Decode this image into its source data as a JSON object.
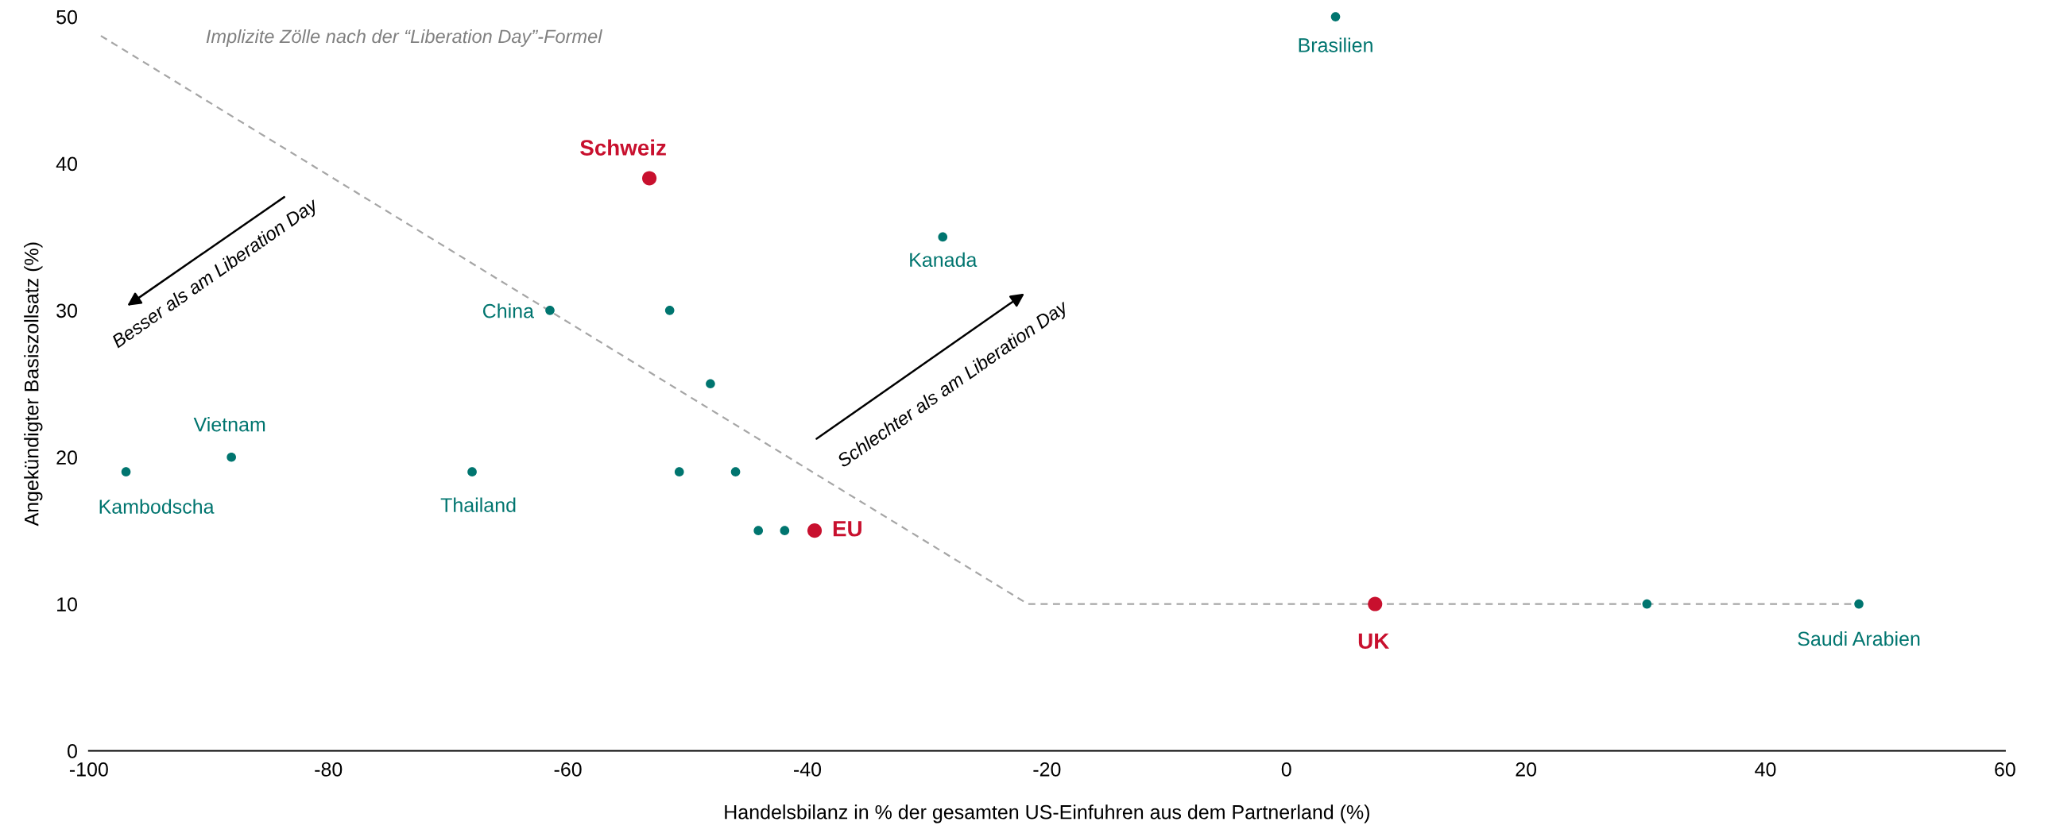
{
  "chart_data": {
    "type": "scatter",
    "xlabel": "Handelsbilanz in % der gesamten US-Einfuhren aus dem Partnerland (%)",
    "ylabel": "Angekündigter Basiszollsatz (%)",
    "xlim": [
      -100,
      60
    ],
    "ylim": [
      0,
      50
    ],
    "xticks": [
      -100,
      -80,
      -60,
      -40,
      -20,
      0,
      20,
      40,
      60
    ],
    "yticks": [
      0,
      10,
      20,
      30,
      40,
      50
    ],
    "grid": false,
    "marker": "circle",
    "series": [
      {
        "type": "line",
        "name": "Implizite Zölle nach der “Liberation Day”-Formel",
        "color": "#a6a6a6",
        "line_style": "dashed",
        "marker": "none",
        "x": [
          -99,
          -21.6,
          47.3
        ],
        "values": [
          48.7,
          10,
          10
        ]
      },
      {
        "color": "#00756f",
        "x": [
          4.1,
          -28.7,
          -61.5,
          -51.5,
          -48.1,
          -88.1,
          -96.9,
          -68,
          -50.7,
          -46.0,
          -44.1,
          -41.9,
          30.1,
          47.8
        ],
        "values": [
          50,
          35,
          30,
          30,
          25,
          20,
          19,
          19,
          19,
          19,
          15,
          15,
          10,
          10
        ],
        "value_labels": [
          "Brasilien",
          "Kanada",
          "China",
          null,
          null,
          "Vietnam",
          "Kambodscha",
          "Thailand",
          null,
          null,
          null,
          null,
          null,
          "Saudi Arabien"
        ]
      },
      {
        "color": "#c8102e",
        "x": [
          -53.2,
          -39.4,
          7.4
        ],
        "values": [
          39,
          15,
          10
        ],
        "value_labels": [
          "Schweiz",
          "EU",
          "UK"
        ]
      }
    ],
    "annotations": [
      "Besser als am Liberation Day",
      "Schlechter als am Liberation Day"
    ]
  }
}
